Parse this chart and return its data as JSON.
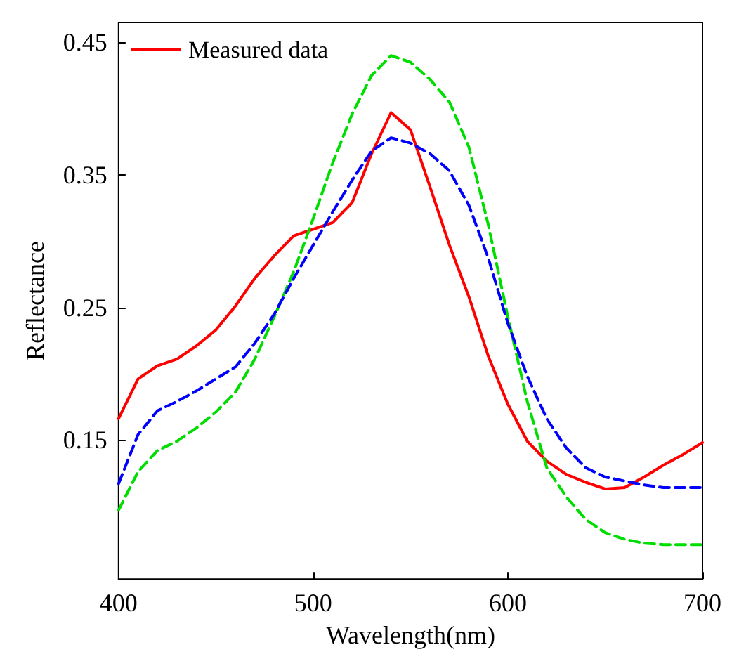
{
  "chart_data": {
    "type": "line",
    "xlabel": "Wavelength(nm)",
    "ylabel": "Reflectance",
    "x": [
      400,
      410,
      420,
      430,
      440,
      450,
      460,
      470,
      480,
      490,
      500,
      510,
      520,
      530,
      540,
      550,
      560,
      570,
      580,
      590,
      600,
      610,
      620,
      630,
      640,
      650,
      660,
      670,
      680,
      690,
      700
    ],
    "series": [
      {
        "name": "Measured data",
        "color": "#ff0000",
        "line_style": "solid",
        "values": [
          0.166,
          0.196,
          0.206,
          0.211,
          0.221,
          0.233,
          0.251,
          0.272,
          0.289,
          0.304,
          0.309,
          0.314,
          0.329,
          0.366,
          0.397,
          0.384,
          0.341,
          0.297,
          0.258,
          0.213,
          0.177,
          0.149,
          0.134,
          0.124,
          0.118,
          0.113,
          0.114,
          0.122,
          0.131,
          0.139,
          0.148
        ]
      },
      {
        "color": "#00dd00",
        "line_style": "dashed",
        "values": [
          0.097,
          0.126,
          0.142,
          0.149,
          0.159,
          0.171,
          0.186,
          0.211,
          0.243,
          0.277,
          0.317,
          0.359,
          0.396,
          0.425,
          0.44,
          0.435,
          0.422,
          0.405,
          0.371,
          0.312,
          0.243,
          0.179,
          0.129,
          0.107,
          0.09,
          0.08,
          0.075,
          0.072,
          0.071,
          0.071,
          0.071
        ]
      },
      {
        "color": "#0000ff",
        "line_style": "dashed",
        "values": [
          0.117,
          0.154,
          0.172,
          0.179,
          0.187,
          0.196,
          0.205,
          0.223,
          0.245,
          0.272,
          0.297,
          0.322,
          0.346,
          0.368,
          0.378,
          0.374,
          0.366,
          0.353,
          0.327,
          0.287,
          0.238,
          0.198,
          0.166,
          0.144,
          0.129,
          0.122,
          0.119,
          0.116,
          0.114,
          0.114,
          0.114
        ]
      }
    ],
    "xlim": [
      400,
      700
    ],
    "xticks": [
      400,
      500,
      600,
      700
    ],
    "ylim": [
      0.045,
      0.465
    ],
    "yticks": [
      0.15,
      0.25,
      0.35,
      0.45
    ],
    "grid": false,
    "legend": "top left",
    "marker": "none"
  }
}
